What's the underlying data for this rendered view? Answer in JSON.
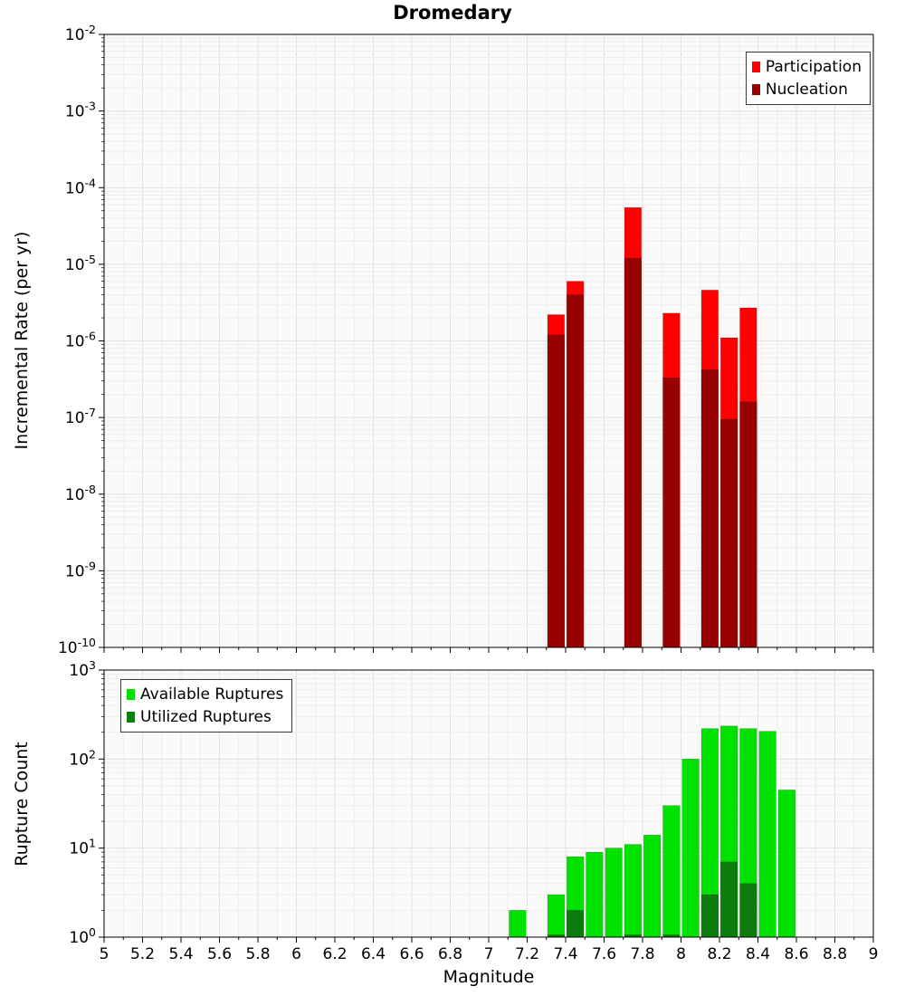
{
  "title": "Dromedary",
  "axes": {
    "x": {
      "label": "Magnitude",
      "min": 5,
      "max": 9,
      "tick_step": 0.2,
      "tick_labels": [
        "5",
        "5.2",
        "5.4",
        "5.6",
        "5.8",
        "6",
        "6.2",
        "6.4",
        "6.6",
        "6.8",
        "7",
        "7.2",
        "7.4",
        "7.6",
        "7.8",
        "8",
        "8.2",
        "8.4",
        "8.6",
        "8.8",
        "9"
      ]
    },
    "top_y": {
      "label": "Incremental Rate (per yr)",
      "min": 1e-10,
      "max": 0.01,
      "scale": "log"
    },
    "bottom_y": {
      "label": "Rupture Count",
      "min": 1,
      "max": 1000,
      "scale": "log"
    }
  },
  "chart_data": [
    {
      "type": "bar",
      "panel": "top",
      "title": "Dromedary",
      "xlabel": "Magnitude",
      "ylabel": "Incremental Rate (per yr)",
      "y_scale": "log",
      "ylim": [
        1e-10,
        0.01
      ],
      "xlim": [
        5,
        9
      ],
      "bin_width": 0.1,
      "grid": true,
      "legend_position": "top-right",
      "categories": [
        7.35,
        7.45,
        7.75,
        7.95,
        8.15,
        8.25,
        8.35
      ],
      "series": [
        {
          "name": "Participation",
          "color": "#ff0000",
          "values": [
            2.2e-06,
            6e-06,
            5.5e-05,
            2.3e-06,
            4.6e-06,
            1.1e-06,
            2.7e-06
          ]
        },
        {
          "name": "Nucleation",
          "color": "#990000",
          "values": [
            1.2e-06,
            4e-06,
            1.2e-05,
            3.3e-07,
            4.2e-07,
            9.5e-08,
            1.6e-07
          ]
        }
      ]
    },
    {
      "type": "bar",
      "panel": "bottom",
      "title": "",
      "xlabel": "Magnitude",
      "ylabel": "Rupture Count",
      "y_scale": "log",
      "ylim": [
        1,
        1000
      ],
      "xlim": [
        5,
        9
      ],
      "bin_width": 0.1,
      "grid": true,
      "legend_position": "top-left",
      "categories": [
        7.15,
        7.35,
        7.45,
        7.55,
        7.65,
        7.75,
        7.85,
        7.95,
        8.05,
        8.15,
        8.25,
        8.35,
        8.45,
        8.55
      ],
      "series": [
        {
          "name": "Available Ruptures",
          "color": "#00e100",
          "values": [
            2,
            3,
            8,
            9,
            10,
            11,
            14,
            30,
            100,
            220,
            235,
            220,
            205,
            45
          ]
        },
        {
          "name": "Utilized Ruptures",
          "color": "#0c7c0c",
          "values": [
            0,
            1,
            2,
            0,
            0,
            1,
            0,
            1,
            0,
            3,
            7,
            4,
            0,
            0
          ]
        }
      ]
    }
  ]
}
